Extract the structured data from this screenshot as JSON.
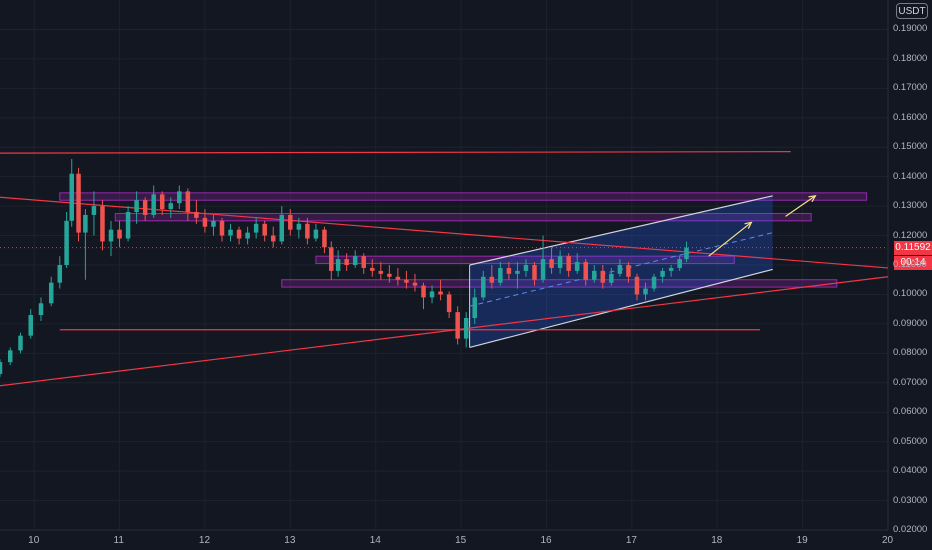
{
  "currency": "USDT",
  "last_price": "0.11592",
  "countdown": "00:14",
  "y_axis": {
    "tick_labels": [
      "0.02000",
      "0.03000",
      "0.04000",
      "0.05000",
      "0.06000",
      "0.07000",
      "0.08000",
      "0.09000",
      "0.10000",
      "0.11000",
      "0.12000",
      "0.13000",
      "0.14000",
      "0.15000",
      "0.16000",
      "0.17000",
      "0.18000",
      "0.19000"
    ],
    "range": [
      0.02,
      0.2
    ]
  },
  "x_axis": {
    "tick_labels": [
      "10",
      "11",
      "12",
      "13",
      "14",
      "15",
      "16",
      "17",
      "18",
      "19",
      "20"
    ],
    "range": [
      9.6,
      20.0
    ]
  },
  "colors": {
    "background": "#131722",
    "grid": "#1e222d",
    "up_candle": "#26a69a",
    "down_candle": "#ef5350",
    "trend_line": "#f23645",
    "zone_border": "#9c27b0",
    "zone_fill": "rgba(156,39,176,0.25)",
    "channel_line": "#d1d4dc",
    "channel_fill": "rgba(41,98,255,0.25)",
    "arrow": "#f7e08a",
    "price_line": "#f23645"
  },
  "chart_data": {
    "type": "candlestick",
    "candles": [
      [
        9.6,
        0.073,
        0.078,
        0.072,
        0.077
      ],
      [
        9.72,
        0.077,
        0.082,
        0.076,
        0.081
      ],
      [
        9.84,
        0.081,
        0.087,
        0.08,
        0.086
      ],
      [
        9.96,
        0.086,
        0.095,
        0.085,
        0.093
      ],
      [
        10.08,
        0.093,
        0.099,
        0.091,
        0.097
      ],
      [
        10.2,
        0.097,
        0.106,
        0.096,
        0.104
      ],
      [
        10.3,
        0.104,
        0.113,
        0.102,
        0.11
      ],
      [
        10.38,
        0.11,
        0.128,
        0.109,
        0.125
      ],
      [
        10.44,
        0.125,
        0.146,
        0.123,
        0.141
      ],
      [
        10.52,
        0.141,
        0.143,
        0.118,
        0.121
      ],
      [
        10.6,
        0.121,
        0.129,
        0.105,
        0.127
      ],
      [
        10.7,
        0.127,
        0.135,
        0.12,
        0.13
      ],
      [
        10.8,
        0.13,
        0.132,
        0.115,
        0.118
      ],
      [
        10.9,
        0.118,
        0.125,
        0.113,
        0.122
      ],
      [
        11.0,
        0.122,
        0.125,
        0.116,
        0.119
      ],
      [
        11.1,
        0.119,
        0.13,
        0.118,
        0.128
      ],
      [
        11.2,
        0.128,
        0.135,
        0.124,
        0.132
      ],
      [
        11.3,
        0.132,
        0.133,
        0.125,
        0.127
      ],
      [
        11.4,
        0.127,
        0.137,
        0.126,
        0.134
      ],
      [
        11.5,
        0.134,
        0.135,
        0.127,
        0.129
      ],
      [
        11.6,
        0.129,
        0.133,
        0.126,
        0.131
      ],
      [
        11.7,
        0.131,
        0.137,
        0.129,
        0.135
      ],
      [
        11.8,
        0.135,
        0.136,
        0.125,
        0.128
      ],
      [
        11.9,
        0.128,
        0.132,
        0.124,
        0.126
      ],
      [
        12.0,
        0.126,
        0.129,
        0.121,
        0.123
      ],
      [
        12.1,
        0.123,
        0.127,
        0.12,
        0.125
      ],
      [
        12.2,
        0.125,
        0.126,
        0.118,
        0.12
      ],
      [
        12.3,
        0.12,
        0.124,
        0.118,
        0.122
      ],
      [
        12.4,
        0.122,
        0.123,
        0.117,
        0.119
      ],
      [
        12.5,
        0.119,
        0.123,
        0.117,
        0.121
      ],
      [
        12.6,
        0.121,
        0.126,
        0.119,
        0.124
      ],
      [
        12.7,
        0.124,
        0.125,
        0.118,
        0.12
      ],
      [
        12.8,
        0.12,
        0.123,
        0.116,
        0.118
      ],
      [
        12.9,
        0.118,
        0.13,
        0.117,
        0.127
      ],
      [
        13.0,
        0.127,
        0.129,
        0.12,
        0.122
      ],
      [
        13.1,
        0.122,
        0.126,
        0.119,
        0.124
      ],
      [
        13.2,
        0.124,
        0.126,
        0.117,
        0.119
      ],
      [
        13.3,
        0.119,
        0.124,
        0.118,
        0.122
      ],
      [
        13.4,
        0.122,
        0.123,
        0.114,
        0.116
      ],
      [
        13.48,
        0.116,
        0.118,
        0.105,
        0.108
      ],
      [
        13.56,
        0.108,
        0.115,
        0.106,
        0.112
      ],
      [
        13.66,
        0.112,
        0.114,
        0.108,
        0.11
      ],
      [
        13.76,
        0.11,
        0.115,
        0.109,
        0.113
      ],
      [
        13.86,
        0.113,
        0.114,
        0.107,
        0.109
      ],
      [
        13.96,
        0.109,
        0.112,
        0.106,
        0.108
      ],
      [
        14.06,
        0.108,
        0.111,
        0.105,
        0.107
      ],
      [
        14.16,
        0.107,
        0.11,
        0.104,
        0.106
      ],
      [
        14.26,
        0.106,
        0.109,
        0.103,
        0.105
      ],
      [
        14.36,
        0.105,
        0.108,
        0.102,
        0.104
      ],
      [
        14.46,
        0.104,
        0.107,
        0.101,
        0.103
      ],
      [
        14.56,
        0.103,
        0.104,
        0.095,
        0.099
      ],
      [
        14.66,
        0.099,
        0.103,
        0.097,
        0.101
      ],
      [
        14.76,
        0.101,
        0.105,
        0.098,
        0.1
      ],
      [
        14.86,
        0.1,
        0.101,
        0.092,
        0.094
      ],
      [
        14.96,
        0.094,
        0.096,
        0.083,
        0.085
      ],
      [
        15.06,
        0.085,
        0.094,
        0.082,
        0.092
      ],
      [
        15.16,
        0.092,
        0.102,
        0.09,
        0.099
      ],
      [
        15.26,
        0.099,
        0.108,
        0.098,
        0.106
      ],
      [
        15.36,
        0.106,
        0.11,
        0.102,
        0.104
      ],
      [
        15.46,
        0.104,
        0.111,
        0.103,
        0.109
      ],
      [
        15.56,
        0.109,
        0.111,
        0.105,
        0.107
      ],
      [
        15.66,
        0.107,
        0.111,
        0.102,
        0.108
      ],
      [
        15.76,
        0.108,
        0.112,
        0.106,
        0.11
      ],
      [
        15.86,
        0.11,
        0.111,
        0.103,
        0.105
      ],
      [
        15.96,
        0.105,
        0.12,
        0.104,
        0.112
      ],
      [
        16.06,
        0.112,
        0.116,
        0.107,
        0.109
      ],
      [
        16.16,
        0.109,
        0.115,
        0.107,
        0.113
      ],
      [
        16.26,
        0.113,
        0.114,
        0.106,
        0.108
      ],
      [
        16.36,
        0.108,
        0.114,
        0.107,
        0.111
      ],
      [
        16.46,
        0.111,
        0.112,
        0.103,
        0.105
      ],
      [
        16.56,
        0.105,
        0.11,
        0.104,
        0.108
      ],
      [
        16.66,
        0.108,
        0.11,
        0.102,
        0.104
      ],
      [
        16.76,
        0.104,
        0.109,
        0.103,
        0.107
      ],
      [
        16.86,
        0.107,
        0.112,
        0.106,
        0.11
      ],
      [
        16.96,
        0.11,
        0.111,
        0.104,
        0.106
      ],
      [
        17.06,
        0.106,
        0.107,
        0.098,
        0.1
      ],
      [
        17.16,
        0.1,
        0.104,
        0.098,
        0.102
      ],
      [
        17.26,
        0.102,
        0.107,
        0.101,
        0.106
      ],
      [
        17.36,
        0.106,
        0.109,
        0.104,
        0.108
      ],
      [
        17.46,
        0.108,
        0.11,
        0.106,
        0.109
      ],
      [
        17.56,
        0.109,
        0.113,
        0.108,
        0.112
      ],
      [
        17.64,
        0.112,
        0.118,
        0.111,
        0.1159
      ]
    ],
    "trend_lines": [
      {
        "from": [
          9.6,
          0.148
        ],
        "to": [
          18.86,
          0.1485
        ]
      },
      {
        "from": [
          10.3,
          0.088
        ],
        "to": [
          18.5,
          0.088
        ]
      },
      {
        "from": [
          9.6,
          0.133
        ],
        "to": [
          20.0,
          0.109
        ]
      },
      {
        "from": [
          9.6,
          0.069
        ],
        "to": [
          20.0,
          0.106
        ]
      }
    ],
    "zones": [
      {
        "x": [
          10.3,
          19.75
        ],
        "y": [
          0.132,
          0.1345
        ]
      },
      {
        "x": [
          10.95,
          19.1
        ],
        "y": [
          0.125,
          0.1275
        ]
      },
      {
        "x": [
          13.3,
          18.2
        ],
        "y": [
          0.1105,
          0.113
        ]
      },
      {
        "x": [
          12.9,
          19.4
        ],
        "y": [
          0.1025,
          0.105
        ]
      }
    ],
    "channel": {
      "upper": [
        [
          15.1,
          0.11
        ],
        [
          18.65,
          0.1335
        ]
      ],
      "lower": [
        [
          15.1,
          0.082
        ],
        [
          18.65,
          0.1085
        ]
      ],
      "mid": [
        [
          15.1,
          0.096
        ],
        [
          18.65,
          0.121
        ]
      ]
    },
    "arrows": [
      {
        "from": [
          17.9,
          0.113
        ],
        "to": [
          18.4,
          0.1245
        ]
      },
      {
        "from": [
          18.8,
          0.1265
        ],
        "to": [
          19.15,
          0.1335
        ]
      }
    ]
  }
}
